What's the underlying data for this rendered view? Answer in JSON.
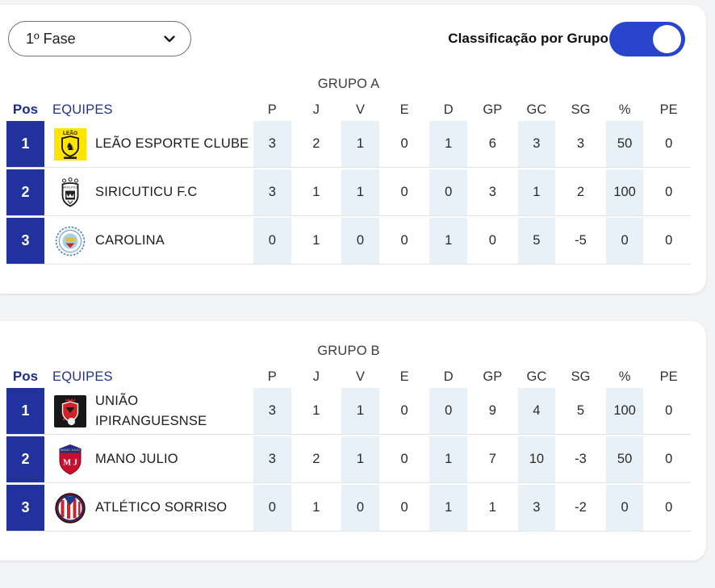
{
  "toolbar": {
    "phase_select": {
      "value": "1º Fase"
    },
    "group_toggle": {
      "label": "Classificação por Grupo",
      "on": true,
      "color": "#2944cc"
    }
  },
  "table": {
    "pos_header": "Pos",
    "team_header": "EQUIPES",
    "stat_columns": [
      "P",
      "J",
      "V",
      "E",
      "D",
      "GP",
      "GC",
      "SG",
      "%",
      "PE"
    ],
    "colors": {
      "header_navy": "#1d2c87",
      "position_box_blue": "#21329e",
      "alt_cell_blue": "#e8f1f8"
    }
  },
  "groups": [
    {
      "title": "GRUPO A",
      "rows": [
        {
          "pos": "1",
          "team": "LEÃO ESPORTE CLUBE",
          "logo": "leao-esporte-clube-logo",
          "stats": [
            "3",
            "2",
            "1",
            "0",
            "1",
            "6",
            "3",
            "3",
            "50",
            "0"
          ]
        },
        {
          "pos": "2",
          "team": "SIRICUTICU F.C",
          "logo": "siricuticu-fc-logo",
          "stats": [
            "3",
            "1",
            "1",
            "0",
            "0",
            "3",
            "1",
            "2",
            "100",
            "0"
          ]
        },
        {
          "pos": "3",
          "team": "CAROLINA",
          "logo": "carolina-logo",
          "stats": [
            "0",
            "1",
            "0",
            "0",
            "1",
            "0",
            "5",
            "-5",
            "0",
            "0"
          ]
        }
      ]
    },
    {
      "title": "GRUPO B",
      "rows": [
        {
          "pos": "1",
          "team": "UNIÃO IPIRANGUESNSE",
          "logo": "uniao-ipiranguesnse-logo",
          "stats": [
            "3",
            "1",
            "1",
            "0",
            "0",
            "9",
            "4",
            "5",
            "100",
            "0"
          ]
        },
        {
          "pos": "2",
          "team": "MANO JULIO",
          "logo": "mano-julio-logo",
          "stats": [
            "3",
            "2",
            "1",
            "0",
            "1",
            "7",
            "10",
            "-3",
            "50",
            "0"
          ]
        },
        {
          "pos": "3",
          "team": "ATLÉTICO SORRISO",
          "logo": "atletico-sorriso-logo",
          "stats": [
            "0",
            "1",
            "0",
            "0",
            "1",
            "1",
            "3",
            "-2",
            "0",
            "0"
          ]
        }
      ]
    }
  ]
}
